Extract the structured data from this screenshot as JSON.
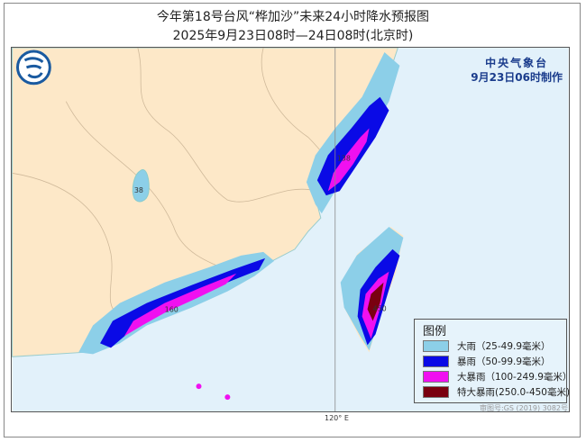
{
  "title": "今年第18号台风“桦加沙”未来24小时降水预报图",
  "subtitle": "2025年9月23日08时—24日08时(北京时)",
  "agency": {
    "name": "中央气象台",
    "issued": "9月23日06时制作",
    "logo_icon": "cma-logo-icon"
  },
  "map": {
    "meridian_label": "120° E",
    "value_labels": [
      "138",
      "38",
      "160",
      "450"
    ],
    "colors": {
      "land": "#fde8c8",
      "sea": "#e2f1fa"
    }
  },
  "legend": {
    "title": "图例",
    "items": [
      {
        "label": "大雨（25-49.9毫米）",
        "color": "#8ccfe8"
      },
      {
        "label": "暴雨（50-99.9毫米）",
        "color": "#0a0ae6"
      },
      {
        "label": "大暴雨（100-249.9毫米）",
        "color": "#f010f0"
      },
      {
        "label": "特大暴雨(250.0-450毫米)",
        "color": "#7a0010"
      }
    ]
  },
  "credit": "审图号:GS (2019) 3082号"
}
